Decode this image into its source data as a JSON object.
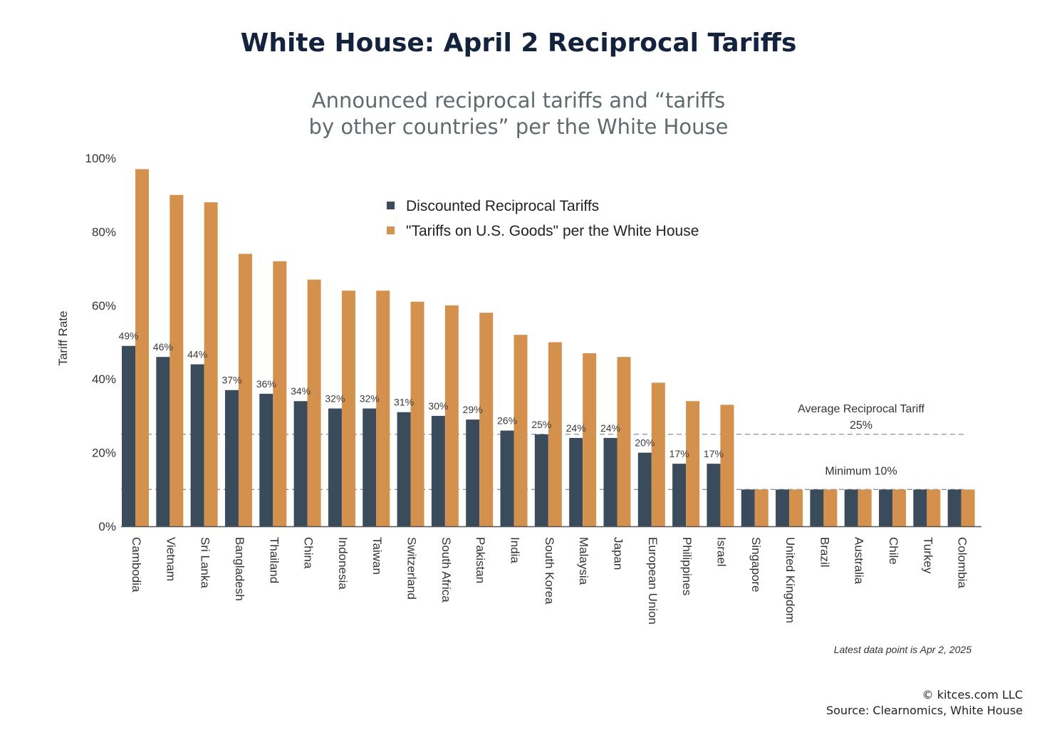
{
  "title": "White House: April 2 Reciprocal Tariffs",
  "subtitle_line1": "Announced reciprocal tariffs and “tariffs",
  "subtitle_line2": "by other countries” per the White House",
  "footnote": "Latest data point is Apr 2, 2025",
  "copyright": "© kitces.com LLC",
  "source": "Source: Clearnomics, White House",
  "colors": {
    "discounted": "#3a4b5c",
    "tariffs": "#d4914d",
    "refline": "#8a9199"
  },
  "chart_data": {
    "type": "bar",
    "ylabel": "Tariff Rate",
    "xlabel": "",
    "ylim": [
      0,
      100
    ],
    "yticks": [
      "0%",
      "20%",
      "40%",
      "60%",
      "80%",
      "100%"
    ],
    "legend_position": "top-center",
    "grid": false,
    "categories": [
      "Cambodia",
      "Vietnam",
      "Sri Lanka",
      "Bangladesh",
      "Thailand",
      "China",
      "Indonesia",
      "Taiwan",
      "Switzerland",
      "South Africa",
      "Pakistan",
      "India",
      "South Korea",
      "Malaysia",
      "Japan",
      "European Union",
      "Philippines",
      "Israel",
      "Singapore",
      "United Kingdom",
      "Brazil",
      "Australia",
      "Chile",
      "Turkey",
      "Colombia"
    ],
    "series": [
      {
        "name": "Discounted Reciprocal Tariffs",
        "values": [
          49,
          46,
          44,
          37,
          36,
          34,
          32,
          32,
          31,
          30,
          29,
          26,
          25,
          24,
          24,
          20,
          17,
          17,
          10,
          10,
          10,
          10,
          10,
          10,
          10
        ]
      },
      {
        "name": "\"Tariffs on U.S. Goods\" per the White House",
        "values": [
          97,
          90,
          88,
          74,
          72,
          67,
          64,
          64,
          61,
          60,
          58,
          52,
          50,
          47,
          46,
          39,
          34,
          33,
          10,
          10,
          10,
          10,
          10,
          10,
          10
        ]
      }
    ],
    "data_labels": [
      "49%",
      "46%",
      "44%",
      "37%",
      "36%",
      "34%",
      "32%",
      "32%",
      "31%",
      "30%",
      "29%",
      "26%",
      "25%",
      "24%",
      "24%",
      "20%",
      "17%",
      "17%"
    ],
    "reference_lines": [
      {
        "value": 25,
        "label": "Average Reciprocal Tariff",
        "value_label": "25%"
      },
      {
        "value": 10,
        "label": "Minimum 10%"
      }
    ]
  }
}
